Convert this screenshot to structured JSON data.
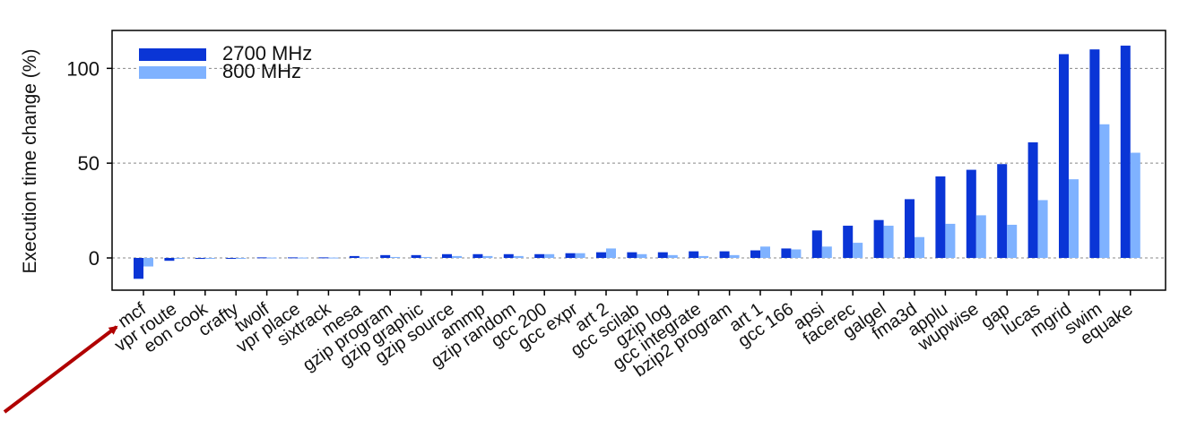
{
  "chart_data": {
    "type": "bar",
    "title": "",
    "xlabel": "",
    "ylabel": "Execution time change (%)",
    "ylim": [
      -17,
      120
    ],
    "yticks": [
      0,
      50,
      100
    ],
    "grid": "horizontal-dashed",
    "legend_position": "top-left",
    "categories": [
      "mcf",
      "vpr route",
      "eon cook",
      "crafty",
      "twolf",
      "vpr place",
      "sixtrack",
      "mesa",
      "gzip program",
      "gzip graphic",
      "gzip source",
      "ammp",
      "gzip random",
      "gcc 200",
      "gcc expr",
      "art 2",
      "gcc scilab",
      "gzip log",
      "gcc integrate",
      "bzip2 program",
      "art 1",
      "gcc 166",
      "apsi",
      "facerec",
      "galgel",
      "fma3d",
      "applu",
      "wupwise",
      "gap",
      "lucas",
      "mgrid",
      "swim",
      "equake"
    ],
    "series": [
      {
        "name": "2700 MHz",
        "color": "#0a35d6",
        "values": [
          -11,
          -1.5,
          -0.5,
          -0.3,
          0.3,
          0.3,
          0.3,
          1,
          1.5,
          1.5,
          2,
          2,
          2,
          2,
          2.5,
          3,
          3,
          3,
          3.5,
          3.5,
          4,
          5,
          14.5,
          17,
          20,
          31,
          43,
          46.5,
          49.5,
          61,
          107.5,
          110,
          112
        ]
      },
      {
        "name": "800 MHz",
        "color": "#7fb2ff",
        "values": [
          -4.5,
          -0.5,
          -0.3,
          -0.3,
          0.2,
          0.2,
          0.2,
          0.3,
          0.5,
          0.5,
          1,
          1,
          1,
          2,
          2.5,
          5,
          2,
          1.5,
          1,
          1.5,
          6,
          4.5,
          6,
          8,
          17,
          11,
          18,
          22.5,
          17.5,
          30.5,
          41.5,
          70.5,
          55.5
        ]
      }
    ]
  },
  "colors": {
    "annotation_arrow": "#b00000",
    "axis": "#000000",
    "grid": "#888888"
  },
  "annotation": {
    "type": "arrow",
    "points_to": "mcf"
  }
}
